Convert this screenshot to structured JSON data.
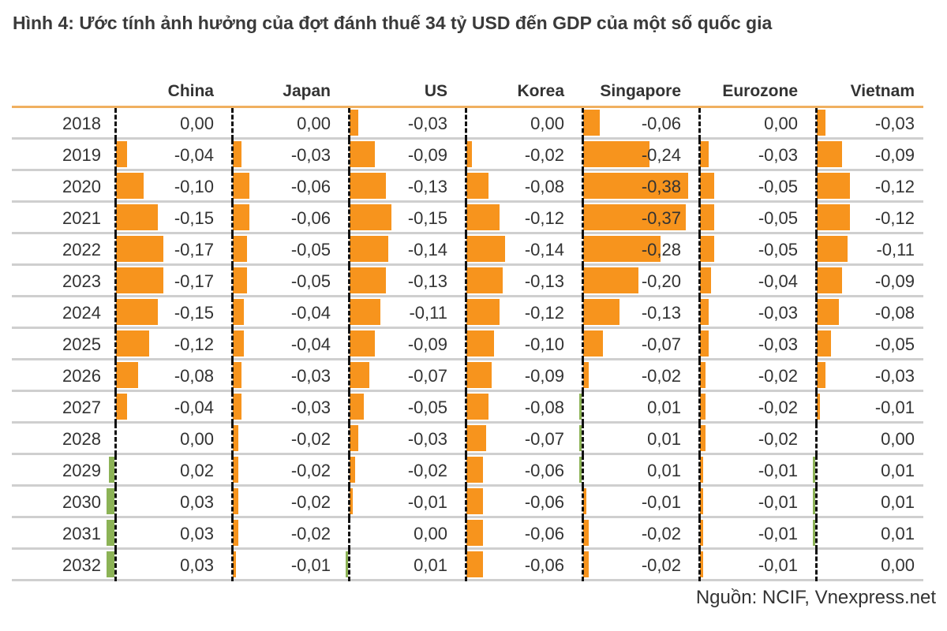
{
  "title": "Hình 4: Ước tính ảnh hưởng của đợt đánh thuế 34 tỷ USD đến GDP của một số quốc gia",
  "source": "Nguồn: NCIF, Vnexpress.net",
  "colors": {
    "negative": "#f7941d",
    "positive": "#8cb356",
    "header_line": "#f0b060",
    "row_line": "#cfcfcf"
  },
  "chart_data": {
    "type": "table",
    "title": "Hình 4: Ước tính ảnh hưởng của đợt đánh thuế 34 tỷ USD đến GDP của một số quốc gia",
    "columns": [
      "China",
      "Japan",
      "US",
      "Korea",
      "Singapore",
      "Eurozone",
      "Vietnam"
    ],
    "rows": [
      {
        "year": "2018",
        "values": [
          "0,00",
          "0,00",
          "-0,03",
          "0,00",
          "-0,06",
          "0,00",
          "-0,03"
        ]
      },
      {
        "year": "2019",
        "values": [
          "-0,04",
          "-0,03",
          "-0,09",
          "-0,02",
          "-0,24",
          "-0,03",
          "-0,09"
        ]
      },
      {
        "year": "2020",
        "values": [
          "-0,10",
          "-0,06",
          "-0,13",
          "-0,08",
          "-0,38",
          "-0,05",
          "-0,12"
        ]
      },
      {
        "year": "2021",
        "values": [
          "-0,15",
          "-0,06",
          "-0,15",
          "-0,12",
          "-0,37",
          "-0,05",
          "-0,12"
        ]
      },
      {
        "year": "2022",
        "values": [
          "-0,17",
          "-0,05",
          "-0,14",
          "-0,14",
          "-0,28",
          "-0,05",
          "-0,11"
        ]
      },
      {
        "year": "2023",
        "values": [
          "-0,17",
          "-0,05",
          "-0,13",
          "-0,13",
          "-0,20",
          "-0,04",
          "-0,09"
        ]
      },
      {
        "year": "2024",
        "values": [
          "-0,15",
          "-0,04",
          "-0,11",
          "-0,12",
          "-0,13",
          "-0,03",
          "-0,08"
        ]
      },
      {
        "year": "2025",
        "values": [
          "-0,12",
          "-0,04",
          "-0,09",
          "-0,10",
          "-0,07",
          "-0,03",
          "-0,05"
        ]
      },
      {
        "year": "2026",
        "values": [
          "-0,08",
          "-0,03",
          "-0,07",
          "-0,09",
          "-0,02",
          "-0,02",
          "-0,03"
        ]
      },
      {
        "year": "2027",
        "values": [
          "-0,04",
          "-0,03",
          "-0,05",
          "-0,08",
          "0,01",
          "-0,02",
          "-0,01"
        ]
      },
      {
        "year": "2028",
        "values": [
          "0,00",
          "-0,02",
          "-0,03",
          "-0,07",
          "0,01",
          "-0,02",
          "0,00"
        ]
      },
      {
        "year": "2029",
        "values": [
          "0,02",
          "-0,02",
          "-0,02",
          "-0,06",
          "0,01",
          "-0,01",
          "0,01"
        ]
      },
      {
        "year": "2030",
        "values": [
          "0,03",
          "-0,02",
          "-0,01",
          "-0,06",
          "-0,01",
          "-0,01",
          "0,01"
        ]
      },
      {
        "year": "2031",
        "values": [
          "0,03",
          "-0,02",
          "0,00",
          "-0,06",
          "-0,02",
          "-0,01",
          "0,01"
        ]
      },
      {
        "year": "2032",
        "values": [
          "0,03",
          "-0,01",
          "0,01",
          "-0,06",
          "-0,02",
          "-0,01",
          "0,00"
        ]
      }
    ]
  }
}
